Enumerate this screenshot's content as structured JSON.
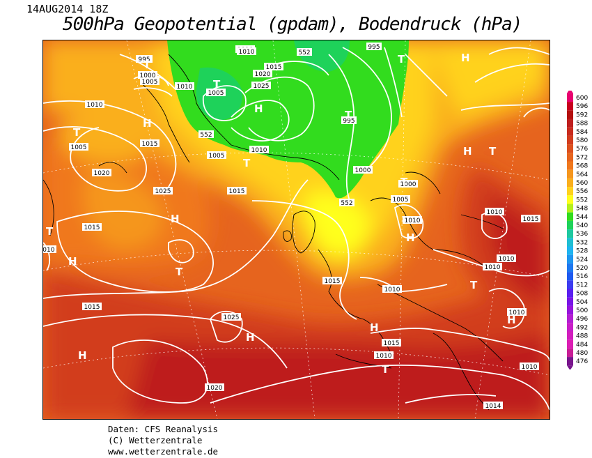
{
  "header": {
    "datetime": "14AUG2014 18Z",
    "title": "500hPa Geopotential (gpdam), Bodendruck (hPa)"
  },
  "footer": {
    "line1": "Daten: CFS Reanalysis",
    "line2": "(C) Wetterzentrale",
    "line3": "www.wetterzentrale.de"
  },
  "legend": {
    "levels": [
      {
        "value": "600",
        "color": "#e8006e"
      },
      {
        "value": "596",
        "color": "#c8001e"
      },
      {
        "value": "592",
        "color": "#b40f0f"
      },
      {
        "value": "588",
        "color": "#be1e1e"
      },
      {
        "value": "584",
        "color": "#c82b1e"
      },
      {
        "value": "580",
        "color": "#d23c1e"
      },
      {
        "value": "576",
        "color": "#dc501e"
      },
      {
        "value": "572",
        "color": "#e6641e"
      },
      {
        "value": "568",
        "color": "#f0781e"
      },
      {
        "value": "564",
        "color": "#f5961e"
      },
      {
        "value": "560",
        "color": "#faaf1e"
      },
      {
        "value": "556",
        "color": "#ffd21e"
      },
      {
        "value": "552",
        "color": "#ffff1e"
      },
      {
        "value": "548",
        "color": "#b4f01e"
      },
      {
        "value": "544",
        "color": "#32dc1e"
      },
      {
        "value": "540",
        "color": "#1ed25a"
      },
      {
        "value": "536",
        "color": "#1ec8a0"
      },
      {
        "value": "532",
        "color": "#1ebed2"
      },
      {
        "value": "528",
        "color": "#1eb4f0"
      },
      {
        "value": "524",
        "color": "#1e96f0"
      },
      {
        "value": "520",
        "color": "#1e78f0"
      },
      {
        "value": "516",
        "color": "#1e5af0"
      },
      {
        "value": "512",
        "color": "#3c3cf0"
      },
      {
        "value": "508",
        "color": "#5a1ef0"
      },
      {
        "value": "504",
        "color": "#7814e6"
      },
      {
        "value": "500",
        "color": "#9614dc"
      },
      {
        "value": "496",
        "color": "#b41ed2"
      },
      {
        "value": "492",
        "color": "#c81ec8"
      },
      {
        "value": "488",
        "color": "#d21ebe"
      },
      {
        "value": "484",
        "color": "#dc1eb4"
      },
      {
        "value": "480",
        "color": "#c81e96"
      },
      {
        "value": "476",
        "color": "#78148c"
      }
    ]
  },
  "map": {
    "pressure_labels": [
      "995",
      "1010",
      "1010",
      "552",
      "995",
      "1000",
      "1005",
      "1010",
      "1015",
      "1020",
      "1025",
      "1005",
      "995",
      "1010",
      "1005",
      "1015",
      "552",
      "1005",
      "1010",
      "1000",
      "1000",
      "1005",
      "1010",
      "1020",
      "1025",
      "1015",
      "1015",
      "552",
      "1010",
      "1015",
      "1010",
      "1010",
      "1015",
      "1010",
      "1010",
      "1010",
      "1015",
      "1025",
      "1015",
      "1010",
      "1020",
      "1010",
      "1014"
    ],
    "centers": [
      {
        "type": "T",
        "name": "low-center"
      },
      {
        "type": "H",
        "name": "high-center"
      }
    ]
  }
}
